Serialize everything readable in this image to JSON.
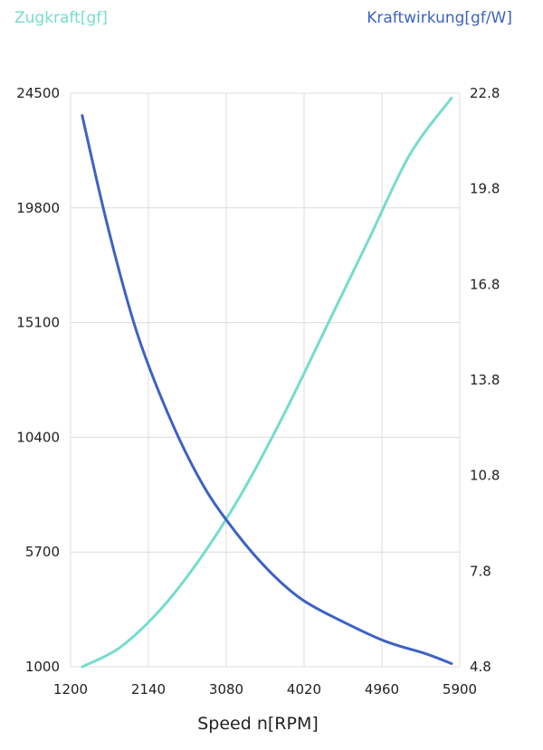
{
  "chart_data": {
    "type": "line",
    "xlabel": "Speed n[RPM]",
    "xlim": [
      1200,
      5900
    ],
    "x_ticks": [
      "1200",
      "2140",
      "3080",
      "4020",
      "4960",
      "5900"
    ],
    "y_left": {
      "label": "Zugkraft[gf]",
      "range": [
        1000,
        24500
      ],
      "ticks": [
        "1000",
        "5700",
        "10400",
        "15100",
        "19800",
        "24500"
      ]
    },
    "y_right": {
      "label": "Kraftwirkung[gf/W]",
      "range": [
        4.8,
        22.8
      ],
      "ticks": [
        "4.8",
        "7.8",
        "10.8",
        "13.8",
        "16.8",
        "19.8",
        "22.8"
      ]
    },
    "grid": true,
    "series": [
      {
        "name": "Zugkraft[gf]",
        "axis": "left",
        "color": "#76dccd",
        "x": [
          1340,
          1800,
          2300,
          2800,
          3300,
          3800,
          4300,
          4800,
          5300,
          5800
        ],
        "values": [
          1000,
          1800,
          3400,
          5600,
          8300,
          11500,
          15000,
          18500,
          22000,
          24300
        ]
      },
      {
        "name": "Kraftwirkung[gf/W]",
        "axis": "right",
        "color": "#3e62c2",
        "x": [
          1340,
          1650,
          2000,
          2400,
          2800,
          3200,
          3600,
          4000,
          4500,
          5000,
          5500,
          5800
        ],
        "values": [
          22.1,
          18.6,
          15.3,
          12.6,
          10.5,
          9.0,
          7.8,
          6.9,
          6.2,
          5.6,
          5.2,
          4.9
        ]
      }
    ]
  }
}
